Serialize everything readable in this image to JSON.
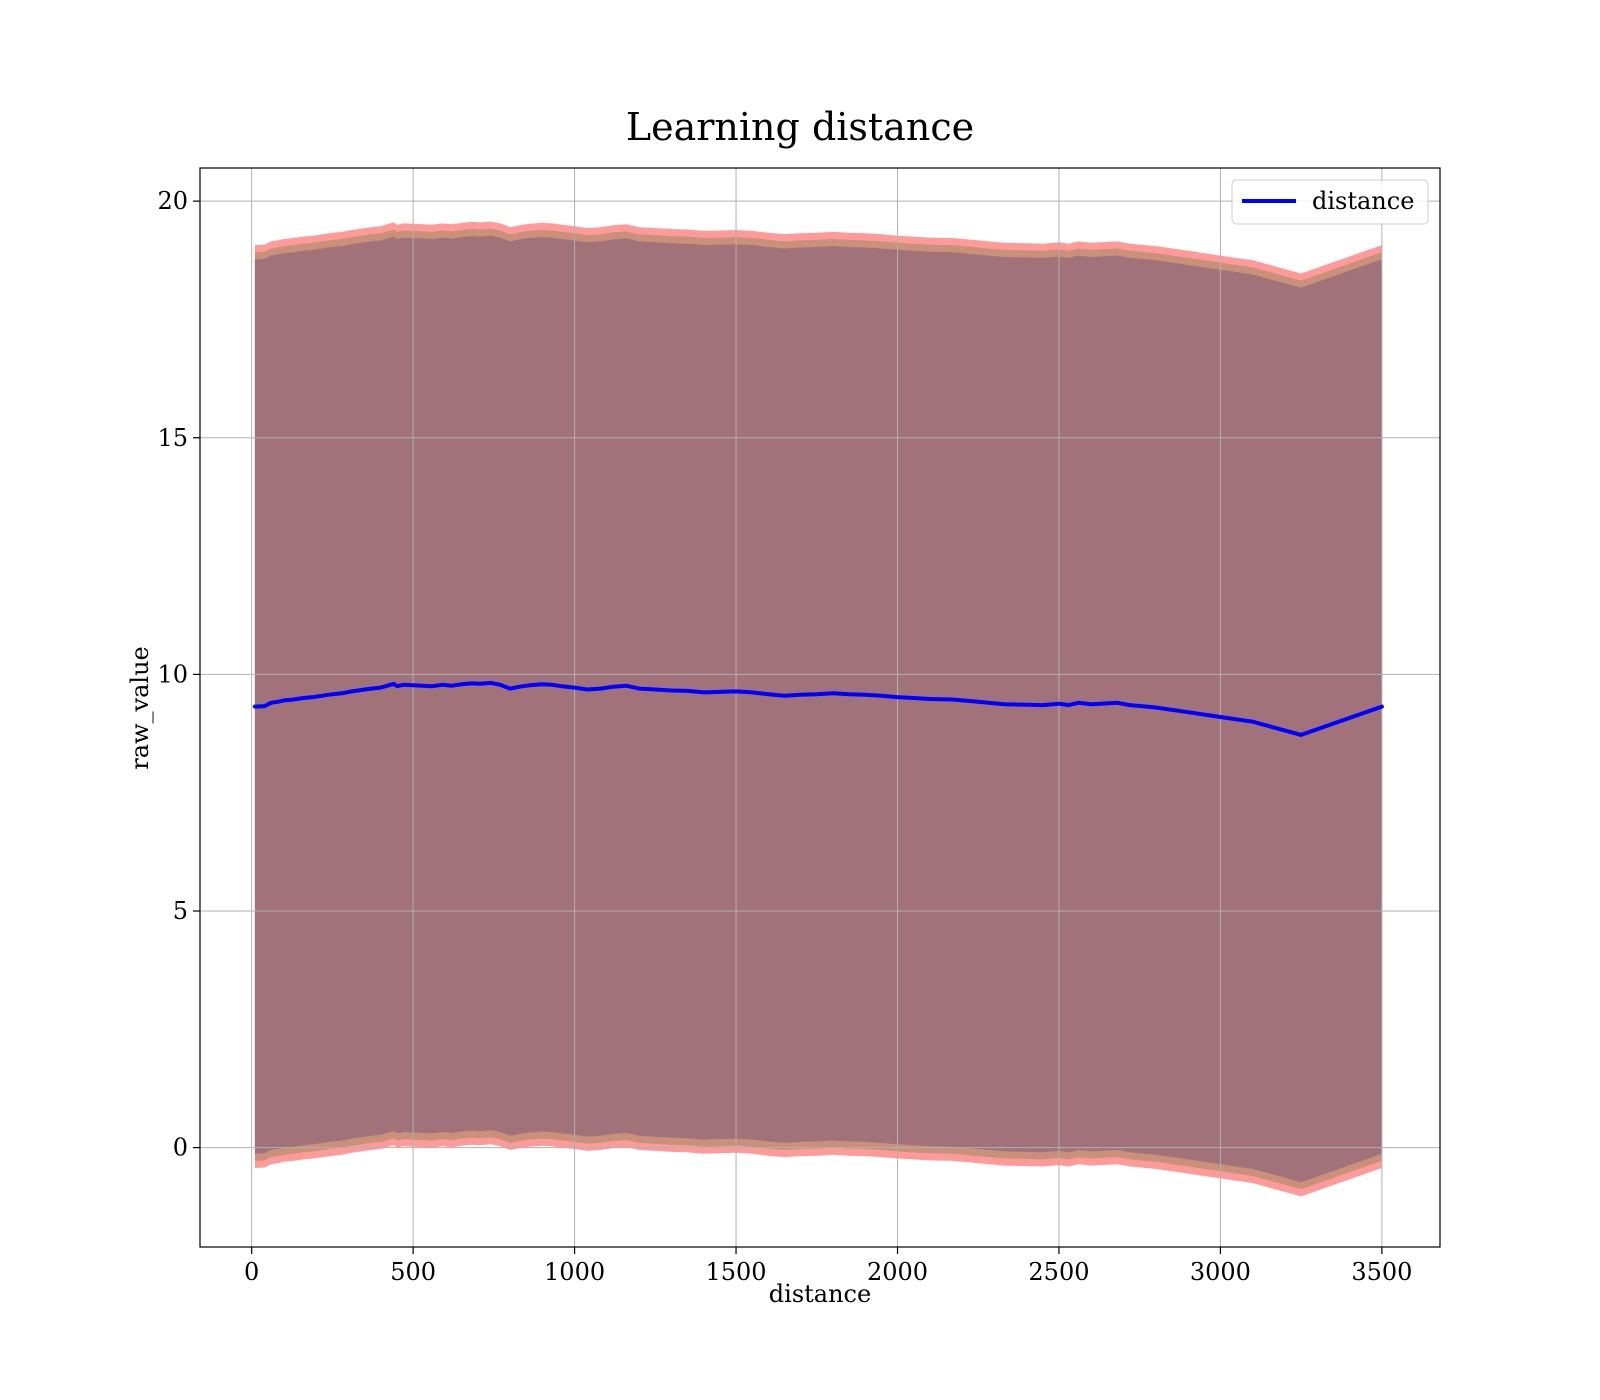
{
  "chart_data": {
    "type": "line",
    "title": "Learning distance",
    "xlabel": "distance",
    "ylabel": "raw_value",
    "xlim": [
      -160,
      3680
    ],
    "ylim": [
      -2.1,
      20.7
    ],
    "x_ticks": [
      0,
      500,
      1000,
      1500,
      2000,
      2500,
      3000,
      3500
    ],
    "y_ticks": [
      0,
      5,
      10,
      15,
      20
    ],
    "grid": true,
    "legend": {
      "position": "top-right",
      "entries": [
        "distance"
      ]
    },
    "colors": {
      "line": "#0000ff",
      "band_outer": "#ff9a9a",
      "band_middle": "#c9907a",
      "band_inner": "#a1727a"
    },
    "band_offsets": {
      "outer": [
        9.75,
        -9.75
      ],
      "middle": [
        9.6,
        -9.6
      ],
      "inner": [
        9.45,
        -9.45
      ]
    },
    "series": [
      {
        "name": "distance",
        "x": [
          10,
          40,
          60,
          80,
          100,
          130,
          160,
          190,
          220,
          250,
          280,
          310,
          340,
          370,
          400,
          420,
          440,
          450,
          470,
          500,
          530,
          560,
          590,
          620,
          650,
          680,
          710,
          740,
          770,
          800,
          830,
          860,
          900,
          930,
          960,
          1000,
          1040,
          1080,
          1120,
          1160,
          1200,
          1250,
          1300,
          1350,
          1400,
          1450,
          1500,
          1550,
          1600,
          1650,
          1700,
          1750,
          1800,
          1850,
          1900,
          1950,
          2000,
          2050,
          2100,
          2170,
          2250,
          2330,
          2400,
          2450,
          2500,
          2530,
          2560,
          2600,
          2680,
          2720,
          2800,
          2900,
          3000,
          3100,
          3250,
          3500
        ],
        "values": [
          9.32,
          9.33,
          9.4,
          9.42,
          9.45,
          9.47,
          9.5,
          9.52,
          9.55,
          9.58,
          9.6,
          9.64,
          9.67,
          9.7,
          9.72,
          9.76,
          9.8,
          9.75,
          9.78,
          9.77,
          9.76,
          9.75,
          9.78,
          9.76,
          9.79,
          9.81,
          9.8,
          9.82,
          9.78,
          9.7,
          9.74,
          9.77,
          9.79,
          9.78,
          9.75,
          9.72,
          9.68,
          9.7,
          9.74,
          9.76,
          9.7,
          9.68,
          9.66,
          9.65,
          9.62,
          9.63,
          9.64,
          9.62,
          9.58,
          9.55,
          9.57,
          9.58,
          9.6,
          9.58,
          9.57,
          9.55,
          9.52,
          9.5,
          9.48,
          9.47,
          9.42,
          9.37,
          9.36,
          9.35,
          9.38,
          9.35,
          9.4,
          9.37,
          9.4,
          9.35,
          9.3,
          9.2,
          9.1,
          9.0,
          8.72,
          9.32
        ]
      }
    ]
  }
}
